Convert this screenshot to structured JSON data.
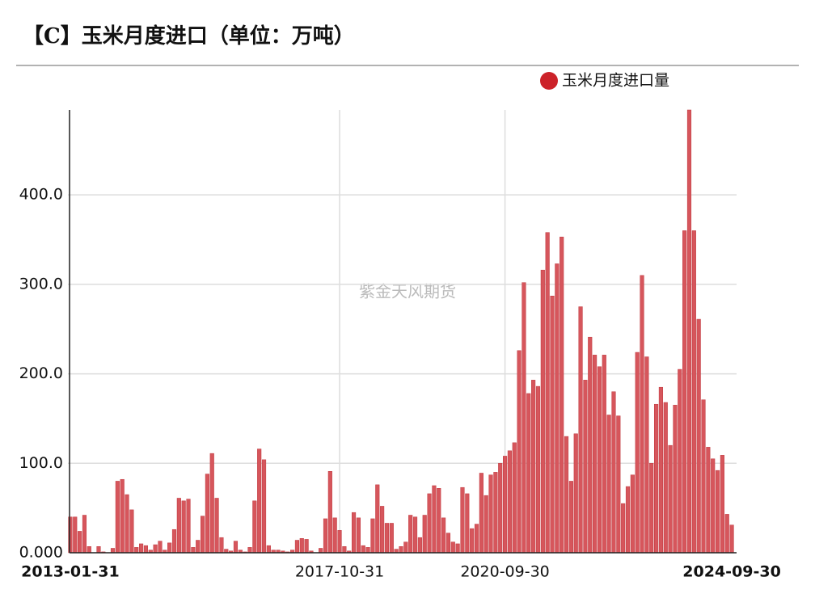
{
  "chart_data": {
    "type": "bar",
    "title": "【C】玉米月度进口（单位：万吨）",
    "watermark": "紫金天风期货",
    "categories": [
      "2013-01-31",
      null,
      null,
      null,
      null,
      null,
      null,
      null,
      null,
      null,
      null,
      null,
      null,
      null,
      null,
      null,
      null,
      null,
      null,
      null,
      null,
      null,
      null,
      null,
      null,
      null,
      null,
      null,
      null,
      null,
      null,
      null,
      null,
      null,
      null,
      null,
      null,
      null,
      null,
      null,
      null,
      null,
      null,
      null,
      null,
      null,
      null,
      null,
      null,
      null,
      null,
      null,
      null,
      null,
      null,
      null,
      null,
      "2017-10-31",
      null,
      null,
      null,
      null,
      null,
      null,
      null,
      null,
      null,
      null,
      null,
      null,
      null,
      null,
      null,
      null,
      null,
      null,
      null,
      null,
      null,
      null,
      null,
      null,
      null,
      null,
      null,
      null,
      null,
      null,
      null,
      null,
      null,
      null,
      "2020-09-30",
      null,
      null,
      null,
      null,
      null,
      null,
      null,
      null,
      null,
      null,
      null,
      null,
      null,
      null,
      null,
      null,
      null,
      null,
      null,
      null,
      null,
      null,
      null,
      null,
      null,
      null,
      null,
      null,
      null,
      null,
      null,
      null,
      null,
      null,
      null,
      null,
      null,
      null,
      null,
      null,
      null,
      null,
      null,
      null,
      null,
      null,
      null,
      "2024-09-30"
    ],
    "series": [
      {
        "name": "玉米月度进口量",
        "color": "#d6565c",
        "values": [
          40,
          40,
          24,
          42,
          7,
          0,
          7,
          1,
          0,
          5,
          80,
          82,
          65,
          48,
          6,
          10,
          8,
          3,
          9,
          13,
          3,
          11,
          26,
          61,
          58,
          60,
          6,
          14,
          41,
          88,
          111,
          61,
          17,
          4,
          2,
          13,
          3,
          1,
          6,
          58,
          116,
          104,
          8,
          3,
          3,
          2,
          1,
          3,
          14,
          16,
          15,
          2,
          0,
          5,
          38,
          91,
          39,
          25,
          7,
          2,
          45,
          39,
          8,
          6,
          38,
          76,
          52,
          33,
          33,
          4,
          7,
          12,
          42,
          40,
          17,
          42,
          66,
          75,
          72,
          39,
          22,
          12,
          10,
          73,
          66,
          27,
          32,
          89,
          64,
          87,
          90,
          100,
          108,
          114,
          123,
          226,
          302,
          178,
          193,
          186,
          316,
          358,
          287,
          323,
          353,
          130,
          80,
          133,
          275,
          193,
          241,
          221,
          208,
          221,
          154,
          180,
          153,
          55,
          74,
          87,
          224,
          310,
          219,
          100,
          166,
          185,
          168,
          120,
          165,
          205,
          360,
          495,
          360,
          261,
          171,
          118,
          105,
          92,
          109,
          43,
          31
        ]
      }
    ],
    "ylim": [
      0,
      495
    ],
    "yticks": [
      {
        "value": 0,
        "label": "0.000"
      },
      {
        "value": 100,
        "label": "100.0"
      },
      {
        "value": 200,
        "label": "200.0"
      },
      {
        "value": 300,
        "label": "300.0"
      },
      {
        "value": 400,
        "label": "400.0"
      }
    ],
    "grid": true,
    "legend": "top"
  }
}
